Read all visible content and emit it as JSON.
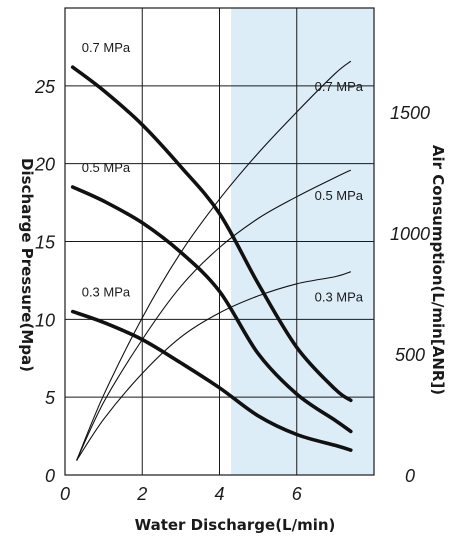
{
  "chart_data": {
    "type": "line",
    "xlabel": "Water Discharge(L/min)",
    "ylabel": "Discharge Pressure(Mpa)",
    "y2label": "Air Consumption(L/min[ANR])",
    "xlim": [
      0,
      8
    ],
    "ylim": [
      0,
      30
    ],
    "y2lim": [
      0,
      1930
    ],
    "x_ticks": [
      "0",
      "2",
      "4",
      "6"
    ],
    "y_ticks": [
      "0",
      "5",
      "10",
      "15",
      "20",
      "25"
    ],
    "y2_ticks": [
      "0",
      "500",
      "1000",
      "1500"
    ],
    "grid": true,
    "highlight_band": {
      "x_from": 4.3,
      "x_to": 8,
      "color": "#dcedf8"
    },
    "pressure_series": [
      {
        "name": "0.7 MPa",
        "axis": "left",
        "points": [
          [
            0.2,
            26.2
          ],
          [
            1,
            24.7
          ],
          [
            2,
            22.5
          ],
          [
            3,
            19.8
          ],
          [
            4,
            16.8
          ],
          [
            5,
            12.3
          ],
          [
            6,
            8.2
          ],
          [
            7,
            5.5
          ],
          [
            7.4,
            4.8
          ]
        ]
      },
      {
        "name": "0.5 MPa",
        "axis": "left",
        "points": [
          [
            0.2,
            18.5
          ],
          [
            1,
            17.6
          ],
          [
            2,
            16.2
          ],
          [
            3,
            14.3
          ],
          [
            4,
            11.8
          ],
          [
            5,
            7.8
          ],
          [
            6,
            5.2
          ],
          [
            7,
            3.5
          ],
          [
            7.4,
            2.8
          ]
        ]
      },
      {
        "name": "0.3 MPa",
        "axis": "left",
        "points": [
          [
            0.2,
            10.5
          ],
          [
            1,
            9.8
          ],
          [
            2,
            8.7
          ],
          [
            3,
            7.2
          ],
          [
            4,
            5.6
          ],
          [
            5,
            3.8
          ],
          [
            6,
            2.6
          ],
          [
            7,
            1.9
          ],
          [
            7.4,
            1.6
          ]
        ]
      }
    ],
    "air_series": [
      {
        "name": "0.7 MPa",
        "axis": "right",
        "points": [
          [
            0.3,
            60
          ],
          [
            1,
            330
          ],
          [
            2,
            650
          ],
          [
            3,
            920
          ],
          [
            4,
            1140
          ],
          [
            5,
            1330
          ],
          [
            6,
            1500
          ],
          [
            7,
            1660
          ],
          [
            7.4,
            1710
          ]
        ]
      },
      {
        "name": "0.5 MPa",
        "axis": "right",
        "points": [
          [
            0.3,
            60
          ],
          [
            1,
            300
          ],
          [
            2,
            560
          ],
          [
            3,
            780
          ],
          [
            4,
            940
          ],
          [
            5,
            1060
          ],
          [
            6,
            1150
          ],
          [
            7,
            1230
          ],
          [
            7.4,
            1260
          ]
        ]
      },
      {
        "name": "0.3 MPa",
        "axis": "right",
        "points": [
          [
            0.3,
            60
          ],
          [
            1,
            230
          ],
          [
            2,
            420
          ],
          [
            3,
            570
          ],
          [
            4,
            670
          ],
          [
            5,
            740
          ],
          [
            6,
            790
          ],
          [
            7,
            820
          ],
          [
            7.4,
            840
          ]
        ]
      }
    ]
  },
  "colors": {
    "band": "#dcedf8",
    "grid": "#1a1a1a",
    "line": "#111111"
  }
}
